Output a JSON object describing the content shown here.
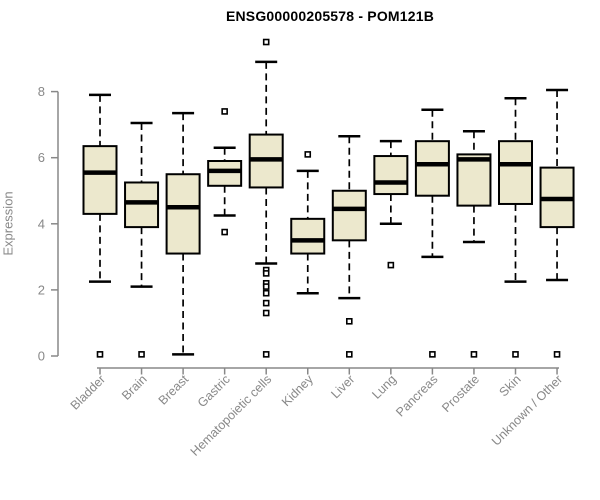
{
  "page": {
    "background": "#ffffff"
  },
  "chart_data": {
    "type": "boxplot",
    "title": "ENSG00000205578 - POM121B",
    "ylabel": "Expression",
    "xlabel": "",
    "y_ticks": [
      0,
      2,
      4,
      6,
      8
    ],
    "ylim": [
      0,
      9.6
    ],
    "grid": false,
    "legend": "none",
    "x_label_rotation_deg": 45,
    "colors": {
      "box_fill": "#ece8cd",
      "box_stroke": "#000000",
      "median": "#000000",
      "whisker": "#000000",
      "outlier_fill": "#ffffff",
      "outlier_stroke": "#000000",
      "axis": "#888888",
      "title": "#000000"
    },
    "categories": [
      "Bladder",
      "Brain",
      "Breast",
      "Gastric",
      "Hematopoietic cells",
      "Kidney",
      "Liver",
      "Lung",
      "Pancreas",
      "Prostate",
      "Skin",
      "Unknown / Other"
    ],
    "series": [
      {
        "label": "Bladder",
        "low": 2.25,
        "q1": 4.3,
        "median": 5.55,
        "q3": 6.35,
        "high": 7.9,
        "outliers": [
          0.05
        ]
      },
      {
        "label": "Brain",
        "low": 2.1,
        "q1": 3.9,
        "median": 4.65,
        "q3": 5.25,
        "high": 7.05,
        "outliers": [
          0.05
        ]
      },
      {
        "label": "Breast",
        "low": 0.05,
        "q1": 3.1,
        "median": 4.5,
        "q3": 5.5,
        "high": 7.35,
        "outliers": []
      },
      {
        "label": "Gastric",
        "low": 4.25,
        "q1": 5.15,
        "median": 5.6,
        "q3": 5.9,
        "high": 6.3,
        "outliers": [
          7.4,
          3.75
        ]
      },
      {
        "label": "Hematopoietic cells",
        "low": 2.8,
        "q1": 5.1,
        "median": 5.95,
        "q3": 6.7,
        "high": 8.9,
        "outliers": [
          9.5,
          2.6,
          2.5,
          2.2,
          2.1,
          1.9,
          1.6,
          1.3,
          0.05
        ]
      },
      {
        "label": "Kidney",
        "low": 1.9,
        "q1": 3.1,
        "median": 3.5,
        "q3": 4.15,
        "high": 5.6,
        "outliers": [
          6.1
        ]
      },
      {
        "label": "Liver",
        "low": 1.75,
        "q1": 3.5,
        "median": 4.45,
        "q3": 5.0,
        "high": 6.65,
        "outliers": [
          1.05,
          0.05
        ]
      },
      {
        "label": "Lung",
        "low": 4.0,
        "q1": 4.9,
        "median": 5.25,
        "q3": 6.05,
        "high": 6.5,
        "outliers": [
          2.75
        ]
      },
      {
        "label": "Pancreas",
        "low": 3.0,
        "q1": 4.85,
        "median": 5.8,
        "q3": 6.5,
        "high": 7.45,
        "outliers": [
          0.05
        ]
      },
      {
        "label": "Prostate",
        "low": 3.45,
        "q1": 4.55,
        "median": 5.95,
        "q3": 6.1,
        "high": 6.8,
        "outliers": [
          0.05
        ]
      },
      {
        "label": "Skin",
        "low": 2.25,
        "q1": 4.6,
        "median": 5.8,
        "q3": 6.5,
        "high": 7.8,
        "outliers": [
          0.05
        ]
      },
      {
        "label": "Unknown / Other",
        "low": 2.3,
        "q1": 3.9,
        "median": 4.75,
        "q3": 5.7,
        "high": 8.05,
        "outliers": [
          0.05
        ]
      }
    ]
  }
}
